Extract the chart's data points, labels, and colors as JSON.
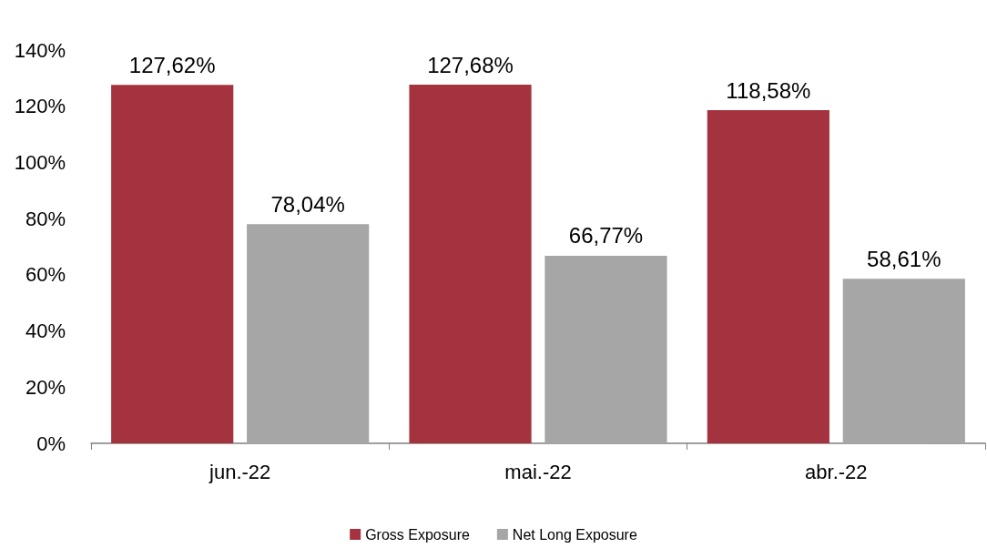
{
  "chart_data": {
    "type": "bar",
    "categories": [
      "jun.-22",
      "mai.-22",
      "abr.-22"
    ],
    "series": [
      {
        "name": "Gross Exposure",
        "color": "#a5333f",
        "values": [
          127.62,
          127.68,
          118.58
        ],
        "value_labels": [
          "127,62%",
          "127,68%",
          "118,58%"
        ]
      },
      {
        "name": "Net Long Exposure",
        "color": "#a6a6a6",
        "values": [
          78.04,
          66.77,
          58.61
        ],
        "value_labels": [
          "78,04%",
          "66,77%",
          "58,61%"
        ]
      }
    ],
    "ylim": [
      0,
      140
    ],
    "yticks": [
      {
        "value": 0,
        "label": "0%"
      },
      {
        "value": 20,
        "label": "20%"
      },
      {
        "value": 40,
        "label": "40%"
      },
      {
        "value": 60,
        "label": "60%"
      },
      {
        "value": 80,
        "label": "80%"
      },
      {
        "value": 100,
        "label": "100%"
      },
      {
        "value": 120,
        "label": "120%"
      },
      {
        "value": 140,
        "label": "140%"
      }
    ],
    "grid": false,
    "legend": "bottom"
  }
}
